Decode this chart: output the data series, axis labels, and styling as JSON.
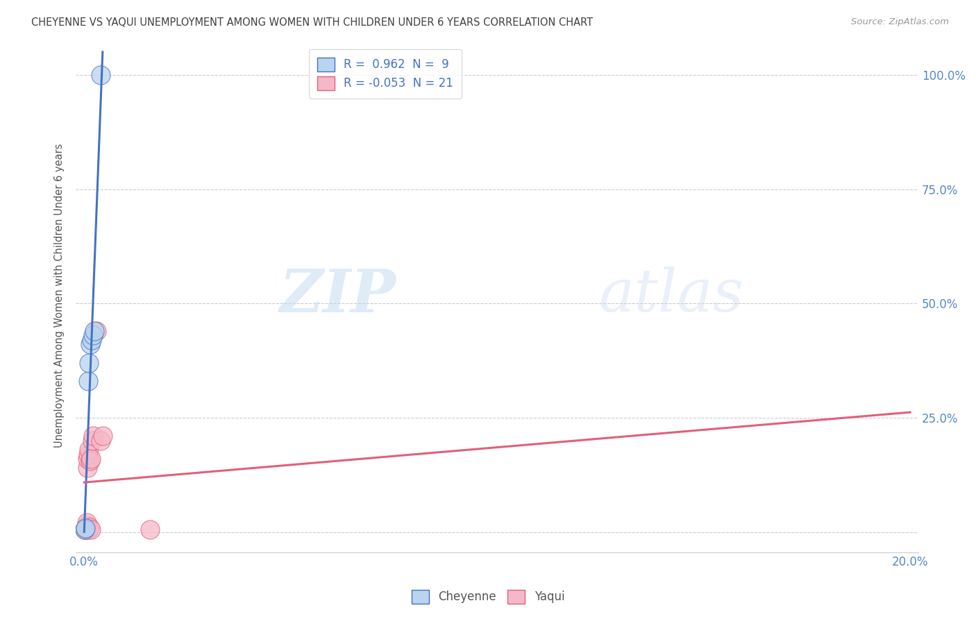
{
  "title": "CHEYENNE VS YAQUI UNEMPLOYMENT AMONG WOMEN WITH CHILDREN UNDER 6 YEARS CORRELATION CHART",
  "source": "Source: ZipAtlas.com",
  "ylabel_label": "Unemployment Among Women with Children Under 6 years",
  "cheyenne_R": 0.962,
  "cheyenne_N": 9,
  "yaqui_R": -0.053,
  "yaqui_N": 21,
  "cheyenne_color": "#b8d4ee",
  "yaqui_color": "#f5b8c8",
  "cheyenne_line_color": "#4472c4",
  "yaqui_line_color": "#e0607a",
  "cheyenne_points": [
    [
      0.0002,
      0.005
    ],
    [
      0.0003,
      0.008
    ],
    [
      0.001,
      0.33
    ],
    [
      0.0012,
      0.37
    ],
    [
      0.0015,
      0.41
    ],
    [
      0.0018,
      0.42
    ],
    [
      0.0022,
      0.43
    ],
    [
      0.0025,
      0.44
    ],
    [
      0.004,
      1.0
    ]
  ],
  "yaqui_points": [
    [
      0.0002,
      0.005
    ],
    [
      0.0003,
      0.005
    ],
    [
      0.0004,
      0.005
    ],
    [
      0.0005,
      0.01
    ],
    [
      0.0006,
      0.015
    ],
    [
      0.0007,
      0.02
    ],
    [
      0.0008,
      0.14
    ],
    [
      0.0009,
      0.16
    ],
    [
      0.001,
      0.17
    ],
    [
      0.0011,
      0.18
    ],
    [
      0.0012,
      0.005
    ],
    [
      0.0013,
      0.01
    ],
    [
      0.0015,
      0.155
    ],
    [
      0.0016,
      0.16
    ],
    [
      0.0017,
      0.005
    ],
    [
      0.002,
      0.2
    ],
    [
      0.0022,
      0.21
    ],
    [
      0.003,
      0.44
    ],
    [
      0.004,
      0.2
    ],
    [
      0.0045,
      0.21
    ],
    [
      0.016,
      0.005
    ]
  ],
  "watermark_zip_color": "#d0e4f5",
  "watermark_atlas_color": "#c8daf0",
  "background_color": "#ffffff",
  "grid_color": "#cccccc",
  "title_color": "#404040",
  "axis_label_color": "#5588cc",
  "x_lim": [
    0.0,
    0.2
  ],
  "y_lim": [
    0.0,
    1.05
  ],
  "x_ticks": [
    0.0,
    0.04,
    0.08,
    0.12,
    0.16,
    0.2
  ],
  "x_tick_labels_show": [
    "0.0%",
    "20.0%"
  ],
  "y_ticks": [
    0.0,
    0.25,
    0.5,
    0.75,
    1.0
  ],
  "y_tick_labels": [
    "",
    "25.0%",
    "50.0%",
    "75.0%",
    "100.0%"
  ],
  "cheyenne_line_x": [
    0.0,
    0.004
  ],
  "yaqui_line_x": [
    0.0,
    0.2
  ]
}
